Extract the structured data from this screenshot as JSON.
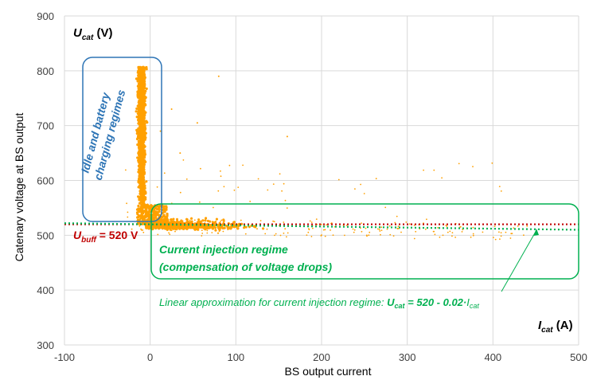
{
  "chart_data": {
    "type": "scatter",
    "xlabel": "BS output current",
    "ylabel": "Catenary voltage at BS output",
    "xlim": [
      -100,
      500
    ],
    "ylim": [
      300,
      900
    ],
    "x_ticks": [
      "-100",
      "0",
      "100",
      "200",
      "300",
      "400",
      "500"
    ],
    "y_ticks": [
      "300",
      "400",
      "500",
      "600",
      "700",
      "800",
      "900"
    ],
    "grid": true,
    "marker_color": "#ffa000",
    "clusters": [
      {
        "x_center": -10,
        "x_spread": 8,
        "y_min": 540,
        "y_max": 810,
        "note": "vertical band"
      },
      {
        "x_center": 100,
        "x_spread": 100,
        "y_center": 518,
        "y_spread": 8,
        "note": "horizontal band"
      }
    ],
    "series": [
      {
        "name": "U_buff = 520 V",
        "type": "hline",
        "y": 520,
        "x_range": [
          -100,
          500
        ],
        "color": "#c00000"
      },
      {
        "name": "Linear approximation",
        "type": "line",
        "x": [
          -100,
          500
        ],
        "y": [
          522,
          510
        ],
        "color": "#00b050"
      }
    ],
    "annotations": {
      "ucat": {
        "main": "U",
        "sub": "cat",
        "unit": " (V)"
      },
      "icat": {
        "main": "I",
        "sub": "cat",
        "unit": " (A)"
      },
      "ubuff": {
        "main": "U",
        "sub": "buff",
        "rest": " = 520 V"
      },
      "idle_line1": "Idle and battery",
      "idle_line2": "charging regimes",
      "current_line1": "Current injection regime",
      "current_line2": "(compensation of voltage drops)",
      "linear_text": "Linear approximation for current injection regime: ",
      "linear_formula_U": "U",
      "linear_formula_U_sub": "cat",
      "linear_formula_mid": " = 520 - 0.02·",
      "linear_formula_I": "I",
      "linear_formula_I_sub": "cat"
    }
  }
}
